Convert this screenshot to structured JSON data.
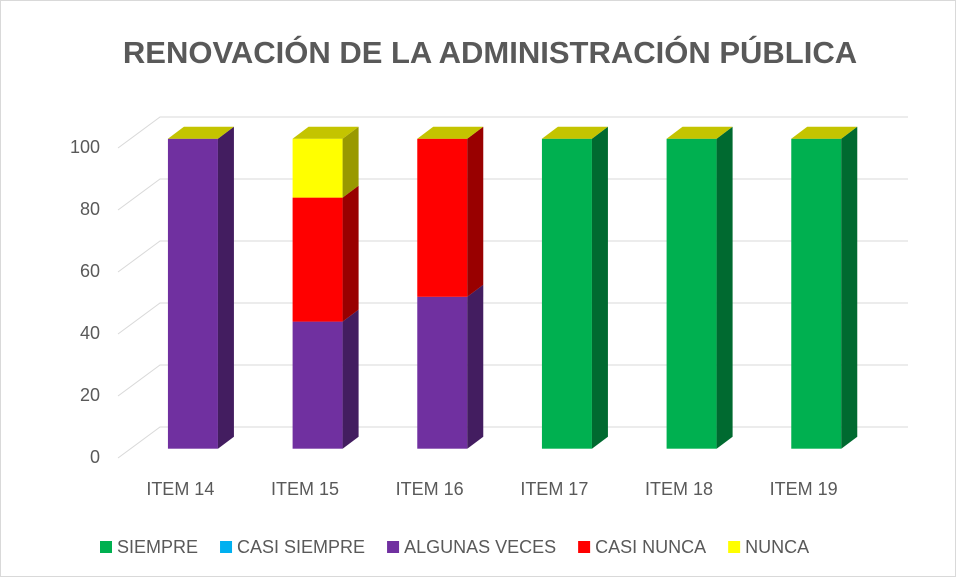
{
  "chart_data": {
    "type": "bar3d_stacked",
    "title": "RENOVACIÓN DE LA ADMINISTRACIÓN PÚBLICA",
    "categories": [
      "ITEM 14",
      "ITEM 15",
      "ITEM 16",
      "ITEM 17",
      "ITEM 18",
      "ITEM 19"
    ],
    "series": [
      {
        "name": "SIEMPRE",
        "color": "#00b050",
        "values": [
          0,
          0,
          0,
          100,
          100,
          100
        ]
      },
      {
        "name": "CASI SIEMPRE",
        "color": "#00b0f0",
        "values": [
          0,
          0,
          0,
          0,
          0,
          0
        ]
      },
      {
        "name": "ALGUNAS VECES",
        "color": "#7030a0",
        "values": [
          100,
          41,
          49,
          0,
          0,
          0
        ]
      },
      {
        "name": "CASI NUNCA",
        "color": "#ff0000",
        "values": [
          0,
          40,
          51,
          0,
          0,
          0
        ]
      },
      {
        "name": "NUNCA",
        "color": "#ffff00",
        "values": [
          0,
          19,
          0,
          0,
          0,
          0
        ]
      }
    ],
    "ylim": [
      0,
      100
    ],
    "yticks": [
      0,
      20,
      40,
      60,
      80,
      100
    ],
    "grid": true,
    "legend": "bottom"
  }
}
